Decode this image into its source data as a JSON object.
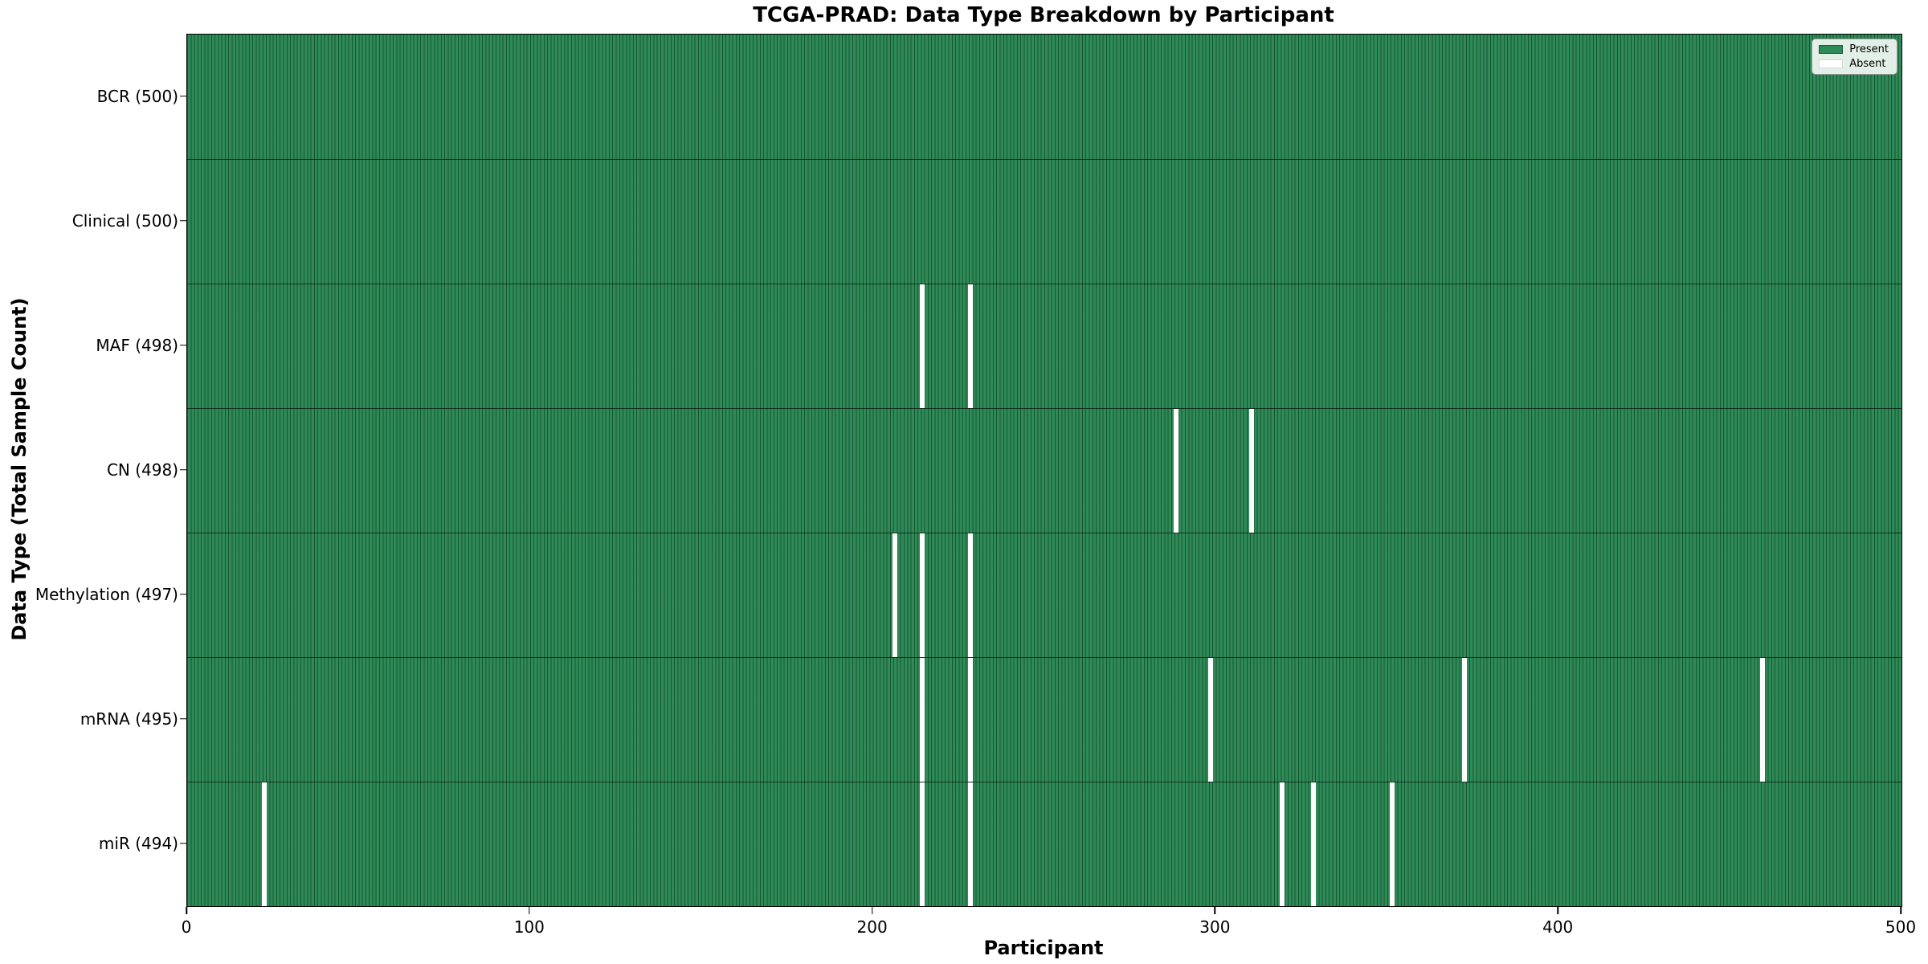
{
  "title": "TCGA-PRAD: Data Type Breakdown by Participant",
  "xlabel": "Participant",
  "ylabel": "Data Type (Total Sample Count)",
  "legend": {
    "present_label": "Present",
    "absent_label": "Absent"
  },
  "colors": {
    "present": "#2E8B57",
    "absent": "#ffffff",
    "bar_edge": "#1d5936",
    "background": "#ffffff"
  },
  "chart_data": {
    "type": "heatmap",
    "title": "TCGA-PRAD: Data Type Breakdown by Participant",
    "xlabel": "Participant",
    "ylabel": "Data Type (Total Sample Count)",
    "x_range": [
      0,
      500
    ],
    "x_ticks": [
      0,
      100,
      200,
      300,
      400,
      500
    ],
    "grid": false,
    "legend_position": "upper right",
    "legend_entries": [
      "Present",
      "Absent"
    ],
    "n_participants": 500,
    "rows": [
      {
        "label": "BCR (500)",
        "data_type": "BCR",
        "total": 500,
        "absent_participants": []
      },
      {
        "label": "Clinical (500)",
        "data_type": "Clinical",
        "total": 500,
        "absent_participants": []
      },
      {
        "label": "MAF (498)",
        "data_type": "MAF",
        "total": 498,
        "absent_participants": [
          214,
          228
        ]
      },
      {
        "label": "CN (498)",
        "data_type": "CN",
        "total": 498,
        "absent_participants": [
          288,
          310
        ]
      },
      {
        "label": "Methylation (497)",
        "data_type": "Methylation",
        "total": 497,
        "absent_participants": [
          206,
          214,
          228
        ]
      },
      {
        "label": "mRNA (495)",
        "data_type": "mRNA",
        "total": 495,
        "absent_participants": [
          214,
          228,
          298,
          372,
          459
        ]
      },
      {
        "label": "miR (494)",
        "data_type": "miR",
        "total": 494,
        "absent_participants": [
          22,
          214,
          228,
          319,
          328,
          351
        ]
      }
    ]
  }
}
